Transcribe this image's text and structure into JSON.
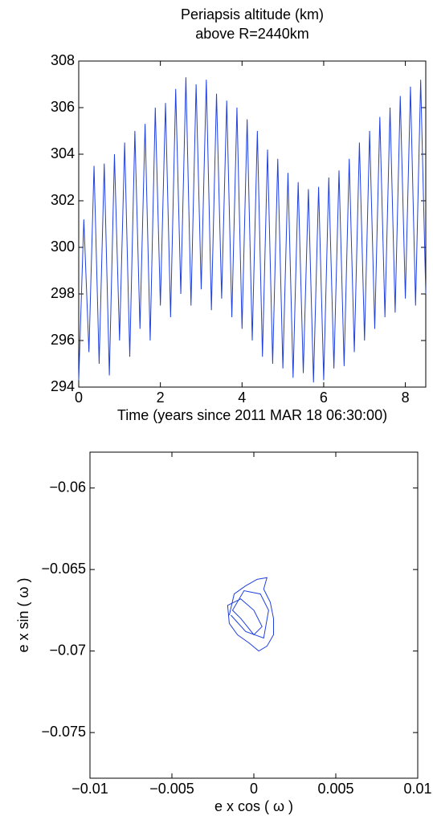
{
  "chart_data": [
    {
      "type": "line",
      "title": [
        "Periapsis altitude (km)",
        "above R=2440km"
      ],
      "x_label": "Time (years since 2011 MAR 18 06:30:00)",
      "xlim": [
        0,
        8.5
      ],
      "xticks": [
        0,
        2,
        4,
        6,
        8
      ],
      "ylim": [
        294,
        308
      ],
      "yticks": [
        294,
        296,
        298,
        300,
        302,
        304,
        306,
        308
      ],
      "x": [
        0,
        0.125,
        0.25,
        0.375,
        0.5,
        0.625,
        0.75,
        0.875,
        1,
        1.125,
        1.25,
        1.375,
        1.5,
        1.625,
        1.75,
        1.875,
        2,
        2.125,
        2.25,
        2.375,
        2.5,
        2.625,
        2.75,
        2.875,
        3,
        3.125,
        3.25,
        3.375,
        3.5,
        3.625,
        3.75,
        3.875,
        4,
        4.125,
        4.25,
        4.375,
        4.5,
        4.625,
        4.75,
        4.875,
        5,
        5.125,
        5.25,
        5.375,
        5.5,
        5.625,
        5.75,
        5.875,
        6,
        6.125,
        6.25,
        6.375,
        6.5,
        6.625,
        6.75,
        6.875,
        7,
        7.125,
        7.25,
        7.375,
        7.5,
        7.625,
        7.75,
        7.875,
        8,
        8.125,
        8.25,
        8.375,
        8.5
      ],
      "series": [
        {
          "color": "#1f3fe0",
          "values": [
            294.3,
            301.2,
            295.5,
            303.5,
            295.0,
            303.6,
            294.5,
            304.0,
            296.0,
            304.5,
            295.3,
            305.0,
            296.5,
            305.3,
            296.0,
            306.0,
            297.5,
            306.2,
            297.0,
            306.8,
            298.0,
            307.3,
            297.5,
            307.0,
            298.2,
            307.2,
            297.3,
            306.6,
            297.8,
            306.3,
            297.0,
            306.0,
            296.5,
            305.5,
            296.0,
            305.0,
            295.3,
            304.2,
            295.0,
            303.8,
            294.8,
            303.2,
            294.4,
            302.8,
            294.6,
            302.5,
            294.2,
            302.6,
            294.3,
            303.0,
            294.8,
            303.3,
            294.9,
            303.8,
            295.5,
            304.5,
            296.0,
            305.0,
            296.5,
            305.6,
            297.0,
            306.0,
            297.2,
            306.5,
            297.8,
            306.9,
            297.5,
            307.2,
            298.0
          ]
        }
      ]
    },
    {
      "type": "line",
      "x_label": "e x cos ( ω )",
      "y_label": "e x sin ( ω )",
      "xlim": [
        -0.01,
        0.01
      ],
      "xticks": [
        {
          "value": -0.01,
          "label": "−0.01"
        },
        {
          "value": -0.005,
          "label": "−0.005"
        },
        0,
        0.005,
        0.01
      ],
      "ylim": [
        -0.0778,
        -0.0578
      ],
      "yticks": [
        {
          "value": -0.06,
          "label": "−0.06"
        },
        {
          "value": -0.065,
          "label": "−0.065"
        },
        {
          "value": -0.07,
          "label": "−0.07"
        },
        {
          "value": -0.075,
          "label": "−0.075"
        }
      ],
      "x": [
        -0.0015,
        -0.0012,
        -0.0005,
        0.0002,
        0.0008,
        0.0006,
        0.001,
        0.0012,
        0.0012,
        0.0008,
        0.0003,
        -0.0003,
        -0.001,
        -0.0015,
        -0.0016,
        -0.0008,
        0,
        0.0005,
        0,
        -0.0008,
        -0.0013,
        -0.0006,
        0.0004,
        0.0009,
        0.0006,
        -0.0005,
        -0.0014
      ],
      "series": [
        {
          "color": "#1f3fe0",
          "values": [
            -0.0678,
            -0.0665,
            -0.066,
            -0.0656,
            -0.0655,
            -0.0662,
            -0.067,
            -0.068,
            -0.069,
            -0.0697,
            -0.07,
            -0.0695,
            -0.069,
            -0.0683,
            -0.0672,
            -0.0668,
            -0.0675,
            -0.0685,
            -0.069,
            -0.068,
            -0.0675,
            -0.0663,
            -0.0665,
            -0.0675,
            -0.0692,
            -0.0688,
            -0.0678
          ]
        }
      ]
    }
  ]
}
